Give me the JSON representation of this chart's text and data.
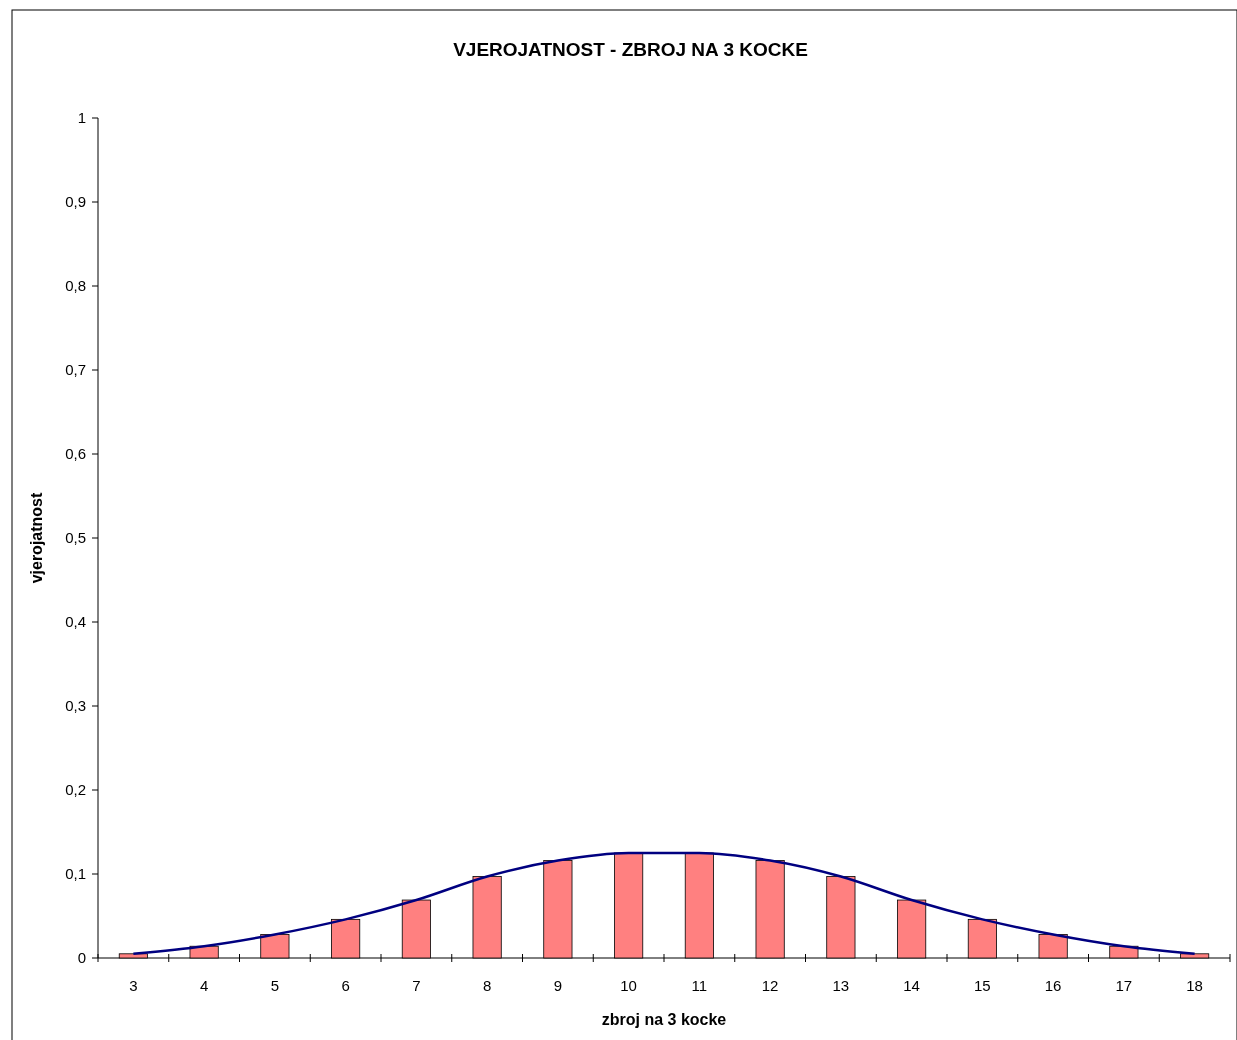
{
  "chart_data": {
    "type": "bar",
    "title": "VJEROJATNOST - ZBROJ NA 3 KOCKE",
    "xlabel": "zbroj na 3 kocke",
    "ylabel": "vjerojatnost",
    "categories": [
      "3",
      "4",
      "5",
      "6",
      "7",
      "8",
      "9",
      "10",
      "11",
      "12",
      "13",
      "14",
      "15",
      "16",
      "17",
      "18"
    ],
    "series": [
      {
        "color": "#ff8080",
        "values": [
          0.005,
          0.014,
          0.028,
          0.046,
          0.069,
          0.097,
          0.116,
          0.125,
          0.125,
          0.116,
          0.097,
          0.069,
          0.046,
          0.028,
          0.014,
          0.005
        ]
      },
      {
        "type": "line",
        "color": "#000080",
        "values": [
          0.005,
          0.014,
          0.028,
          0.046,
          0.069,
          0.097,
          0.116,
          0.125,
          0.125,
          0.116,
          0.097,
          0.069,
          0.046,
          0.028,
          0.014,
          0.005
        ]
      }
    ],
    "ylim": [
      0,
      1
    ],
    "yticks": [
      0,
      {
        "value": 0.1,
        "label": "0,1"
      },
      {
        "value": 0.2,
        "label": "0,2"
      },
      {
        "value": 0.3,
        "label": "0,3"
      },
      {
        "value": 0.4,
        "label": "0,4"
      },
      {
        "value": 0.5,
        "label": "0,5"
      },
      {
        "value": 0.6,
        "label": "0,6"
      },
      {
        "value": 0.7,
        "label": "0,7"
      },
      {
        "value": 0.8,
        "label": "0,8"
      },
      {
        "value": 0.9,
        "label": "0,9"
      },
      1
    ],
    "grid": false,
    "marker": "none",
    "line_style": "solid"
  }
}
